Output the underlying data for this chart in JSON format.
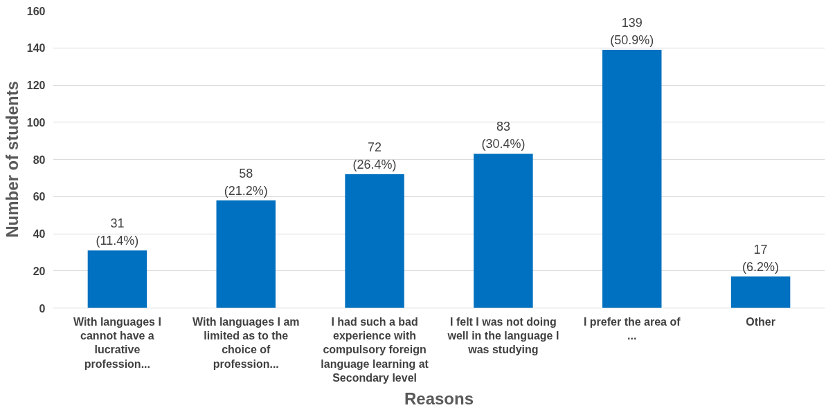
{
  "chart_data": {
    "type": "bar",
    "xlabel": "Reasons",
    "ylabel": "Number of students",
    "categories": [
      "With languages I cannot have a lucrative profession...",
      "With languages I am limited as to the choice of profession...",
      "I had such a bad experience with compulsory foreign language learning at Secondary level",
      "I felt I was not doing well in the language I was studying",
      "I prefer the area of ...",
      "Other"
    ],
    "values": [
      31,
      58,
      72,
      83,
      139,
      17
    ],
    "value_labels": [
      "31\n(11.4%)",
      "58\n(21.2%)",
      "72\n(26.4%)",
      "83\n(30.4%)",
      "139\n(50.9%)",
      "17\n(6.2%)"
    ],
    "color": "#0070c0",
    "ylim": [
      0,
      160
    ],
    "yticks": [
      0,
      20,
      40,
      60,
      80,
      100,
      120,
      140,
      160
    ],
    "grid": "y"
  }
}
